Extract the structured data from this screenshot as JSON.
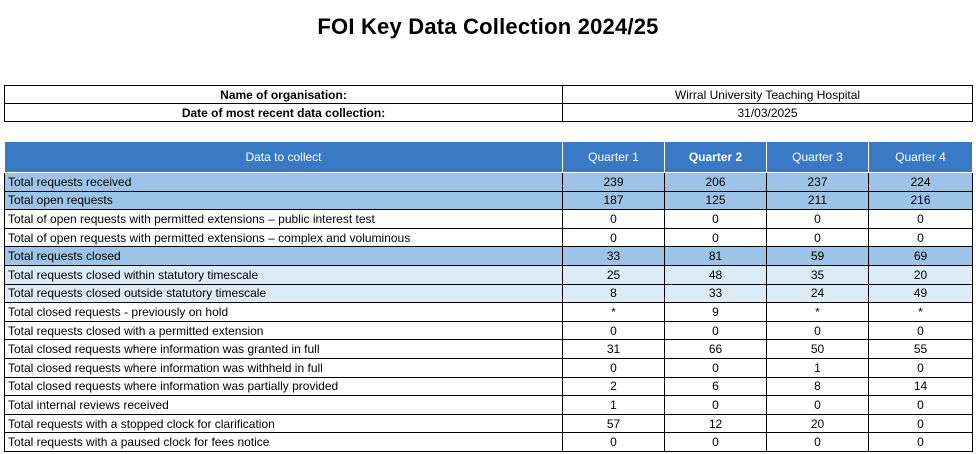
{
  "title": "FOI Key Data Collection 2024/25",
  "meta": [
    {
      "label": "Name of organisation:",
      "value": "Wirral University Teaching Hospital"
    },
    {
      "label": "Date of most recent data collection:",
      "value": "31/03/2025"
    }
  ],
  "table": {
    "headers": [
      "Data to collect",
      "Quarter 1",
      "Quarter 2",
      "Quarter 3",
      "Quarter 4"
    ],
    "rows": [
      {
        "label": "Total requests received",
        "values": [
          "239",
          "206",
          "237",
          "224"
        ],
        "tone": "dark"
      },
      {
        "label": "Total open requests",
        "values": [
          "187",
          "125",
          "211",
          "216"
        ],
        "tone": "dark"
      },
      {
        "label": "Total of open requests with permitted extensions – public interest test",
        "values": [
          "0",
          "0",
          "0",
          "0"
        ],
        "tone": "white"
      },
      {
        "label": "Total of open requests with permitted extensions – complex and voluminous",
        "values": [
          "0",
          "0",
          "0",
          "0"
        ],
        "tone": "white"
      },
      {
        "label": "Total requests closed",
        "values": [
          "33",
          "81",
          "59",
          "69"
        ],
        "tone": "dark"
      },
      {
        "label": "Total requests closed within statutory timescale",
        "values": [
          "25",
          "48",
          "35",
          "20"
        ],
        "tone": "light"
      },
      {
        "label": "Total requests closed outside statutory timescale",
        "values": [
          "8",
          "33",
          "24",
          "49"
        ],
        "tone": "light"
      },
      {
        "label": "Total closed requests - previously on hold",
        "values": [
          "*",
          "9",
          "*",
          "*"
        ],
        "tone": "white"
      },
      {
        "label": "Total requests closed with a permitted extension",
        "values": [
          "0",
          "0",
          "0",
          "0"
        ],
        "tone": "white"
      },
      {
        "label": "Total closed requests where information was granted in full",
        "values": [
          "31",
          "66",
          "50",
          "55"
        ],
        "tone": "white"
      },
      {
        "label": "Total closed requests where information was withheld in full",
        "values": [
          "0",
          "0",
          "1",
          "0"
        ],
        "tone": "white"
      },
      {
        "label": "Total closed requests where information was partially provided",
        "values": [
          "2",
          "6",
          "8",
          "14"
        ],
        "tone": "white"
      },
      {
        "label": "Total internal reviews received",
        "values": [
          "1",
          "0",
          "0",
          "0"
        ],
        "tone": "white"
      },
      {
        "label": "Total requests with a stopped clock for clarification",
        "values": [
          "57",
          "12",
          "20",
          "0"
        ],
        "tone": "white"
      },
      {
        "label": "Total requests with a paused clock for fees notice",
        "values": [
          "0",
          "0",
          "0",
          "0"
        ],
        "tone": "white"
      }
    ]
  }
}
